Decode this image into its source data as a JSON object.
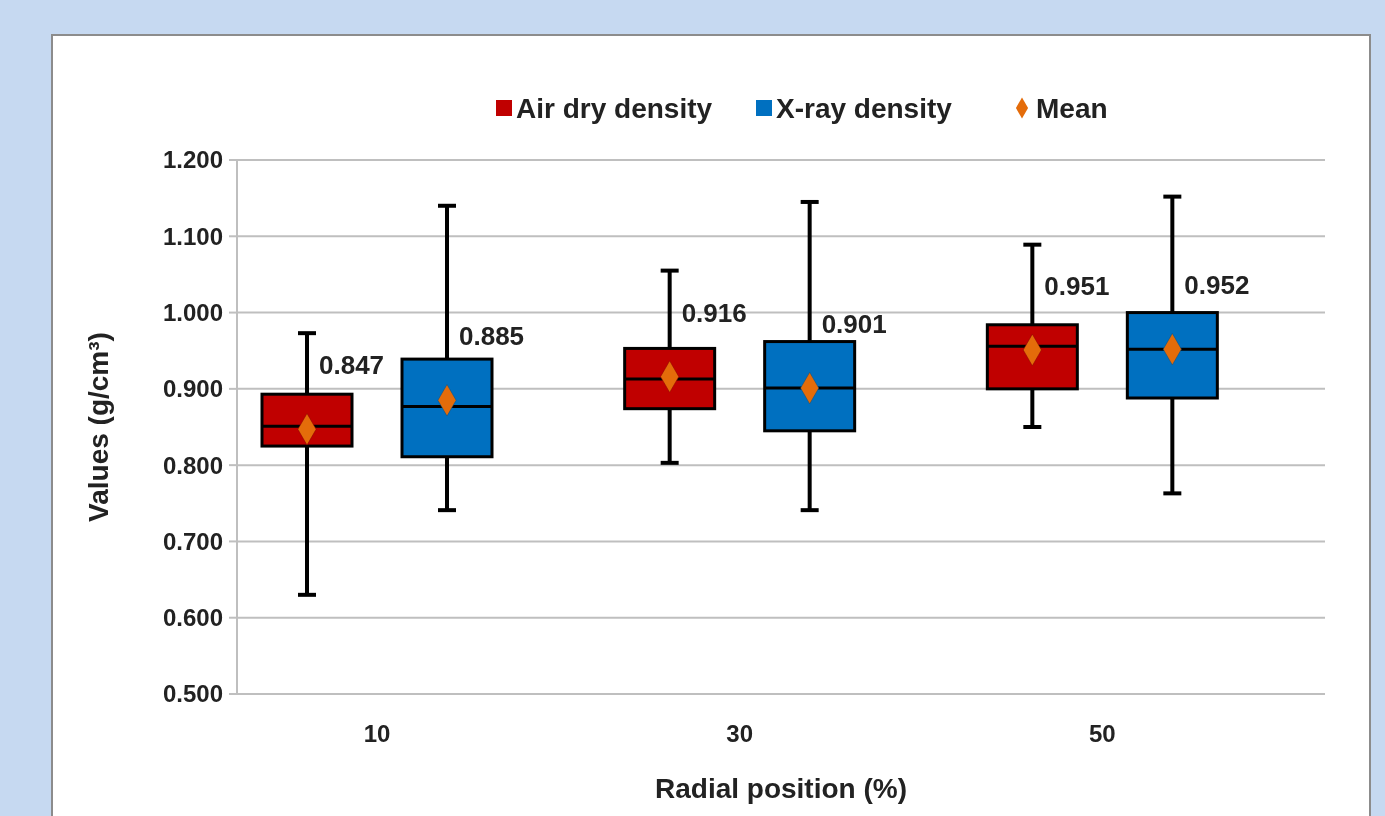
{
  "chart_data": {
    "type": "box",
    "categories": [
      "10",
      "30",
      "50"
    ],
    "xlabel": "Radial position (%)",
    "ylabel": "Values (g/cm³)",
    "ylim": [
      0.5,
      1.2
    ],
    "yticks": [
      {
        "value": 0.5,
        "label": "0.500"
      },
      {
        "value": 0.6,
        "label": "0.600"
      },
      {
        "value": 0.7,
        "label": "0.700"
      },
      {
        "value": 0.8,
        "label": "0.800"
      },
      {
        "value": 0.9,
        "label": "0.900"
      },
      {
        "value": 1.0,
        "label": "1.000"
      },
      {
        "value": 1.1,
        "label": "1.100"
      },
      {
        "value": 1.2,
        "label": "1.200"
      }
    ],
    "grid": "y",
    "legend": "top",
    "annotations": [
      "0.847",
      "0.885",
      "0.916",
      "0.901",
      "0.951",
      "0.952"
    ],
    "series": [
      {
        "name": "Air dry density",
        "color": "#c00000",
        "boxes": [
          {
            "low": 0.63,
            "q1": 0.825,
            "median": 0.851,
            "q3": 0.893,
            "high": 0.973,
            "mean": 0.847
          },
          {
            "low": 0.803,
            "q1": 0.874,
            "median": 0.913,
            "q3": 0.953,
            "high": 1.055,
            "mean": 0.916
          },
          {
            "low": 0.85,
            "q1": 0.9,
            "median": 0.956,
            "q3": 0.984,
            "high": 1.089,
            "mean": 0.951
          }
        ]
      },
      {
        "name": "X-ray density",
        "color": "#0070c0",
        "boxes": [
          {
            "low": 0.741,
            "q1": 0.811,
            "median": 0.877,
            "q3": 0.939,
            "high": 1.14,
            "mean": 0.885
          },
          {
            "low": 0.741,
            "q1": 0.845,
            "median": 0.901,
            "q3": 0.962,
            "high": 1.145,
            "mean": 0.901
          },
          {
            "low": 0.763,
            "q1": 0.888,
            "median": 0.952,
            "q3": 1.0,
            "high": 1.152,
            "mean": 0.952
          }
        ]
      },
      {
        "name": "Mean",
        "type": "scatter",
        "marker": "diamond",
        "color": "#e46c0a",
        "values": [
          null,
          null,
          null
        ]
      }
    ]
  }
}
